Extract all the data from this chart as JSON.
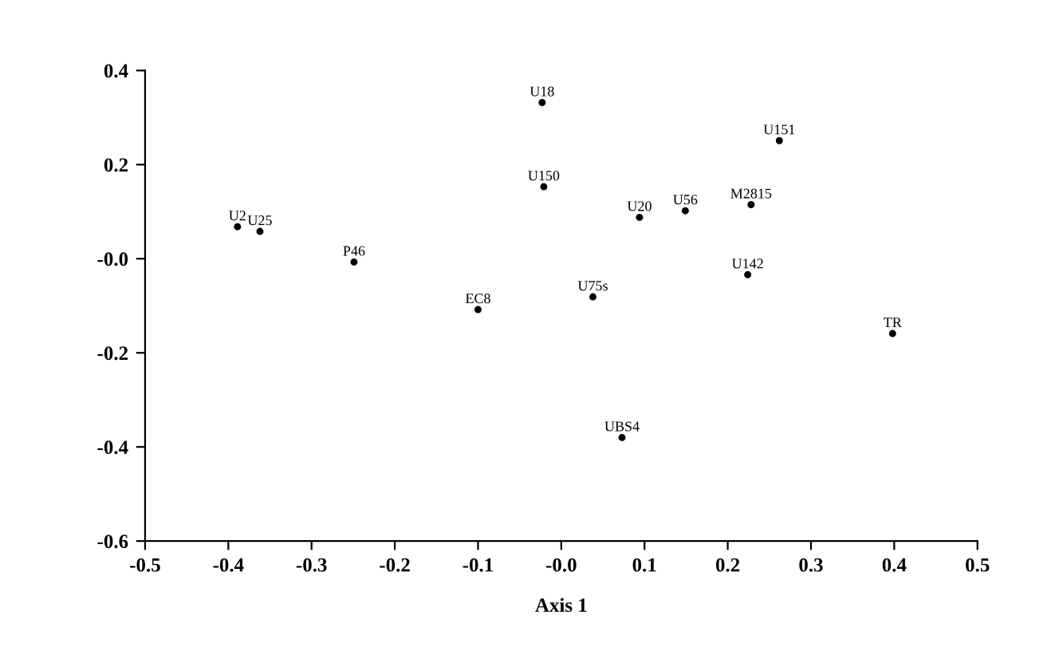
{
  "chart_data": {
    "type": "scatter",
    "xlabel": "Axis 1",
    "marker": "circle",
    "grid": false,
    "legend": false,
    "xlim": [
      -0.5,
      0.5
    ],
    "ylim": [
      -0.6,
      0.4
    ],
    "xticks": [
      -0.5,
      -0.4,
      -0.3,
      -0.2,
      -0.1,
      {
        "value": 0,
        "label": "-0.0"
      },
      0.1,
      0.2,
      0.3,
      0.4,
      0.5
    ],
    "yticks": [
      -0.6,
      -0.4,
      -0.2,
      {
        "value": 0,
        "label": "-0.0"
      },
      0.2,
      0.4
    ],
    "series": [
      {
        "color": "#000000",
        "x": [
          -0.023,
          0.262,
          -0.021,
          0.228,
          0.149,
          0.094,
          -0.389,
          -0.362,
          -0.249,
          0.224,
          0.038,
          -0.1,
          0.398,
          0.073
        ],
        "values": [
          0.332,
          0.251,
          0.153,
          0.115,
          0.102,
          0.088,
          0.068,
          0.058,
          -0.007,
          -0.034,
          -0.081,
          -0.108,
          -0.159,
          -0.38
        ],
        "value_labels": [
          "U18",
          "U151",
          "U150",
          "M2815",
          "U56",
          "U20",
          "U2",
          "U25",
          "P46",
          "U142",
          "U75s",
          "EC8",
          "TR",
          "UBS4"
        ]
      }
    ]
  }
}
